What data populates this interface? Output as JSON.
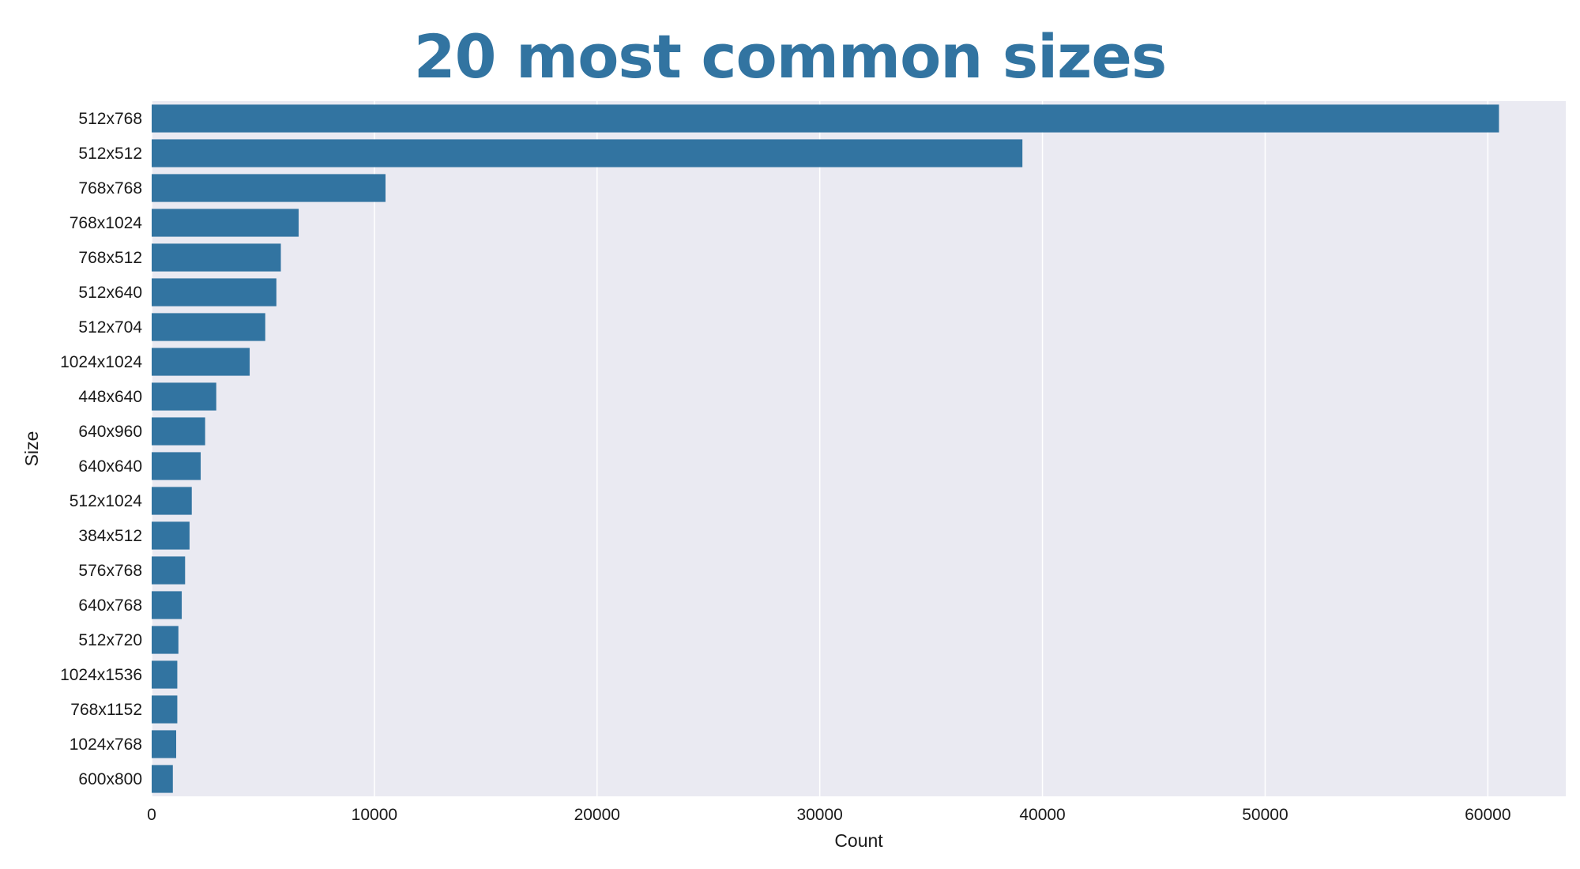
{
  "chart_data": {
    "type": "bar",
    "orientation": "horizontal",
    "title": "20 most common sizes",
    "xlabel": "Count",
    "ylabel": "Size",
    "categories": [
      "512x768",
      "512x512",
      "768x768",
      "768x1024",
      "768x512",
      "512x640",
      "512x704",
      "1024x1024",
      "448x640",
      "640x960",
      "640x640",
      "512x1024",
      "384x512",
      "576x768",
      "640x768",
      "512x720",
      "1024x1536",
      "768x1152",
      "1024x768",
      "600x800"
    ],
    "values": [
      60500,
      39100,
      10500,
      6600,
      5800,
      5600,
      5100,
      4400,
      2900,
      2400,
      2200,
      1800,
      1700,
      1500,
      1350,
      1200,
      1150,
      1150,
      1100,
      950
    ],
    "xlim": [
      0,
      63500
    ],
    "xticks": [
      0,
      10000,
      20000,
      30000,
      40000,
      50000,
      60000
    ],
    "grid": true,
    "legend": false,
    "colors": {
      "bar": "#3274a1",
      "plot_background": "#eaeaf2",
      "grid": "#ffffff",
      "title": "#3274a1"
    }
  }
}
